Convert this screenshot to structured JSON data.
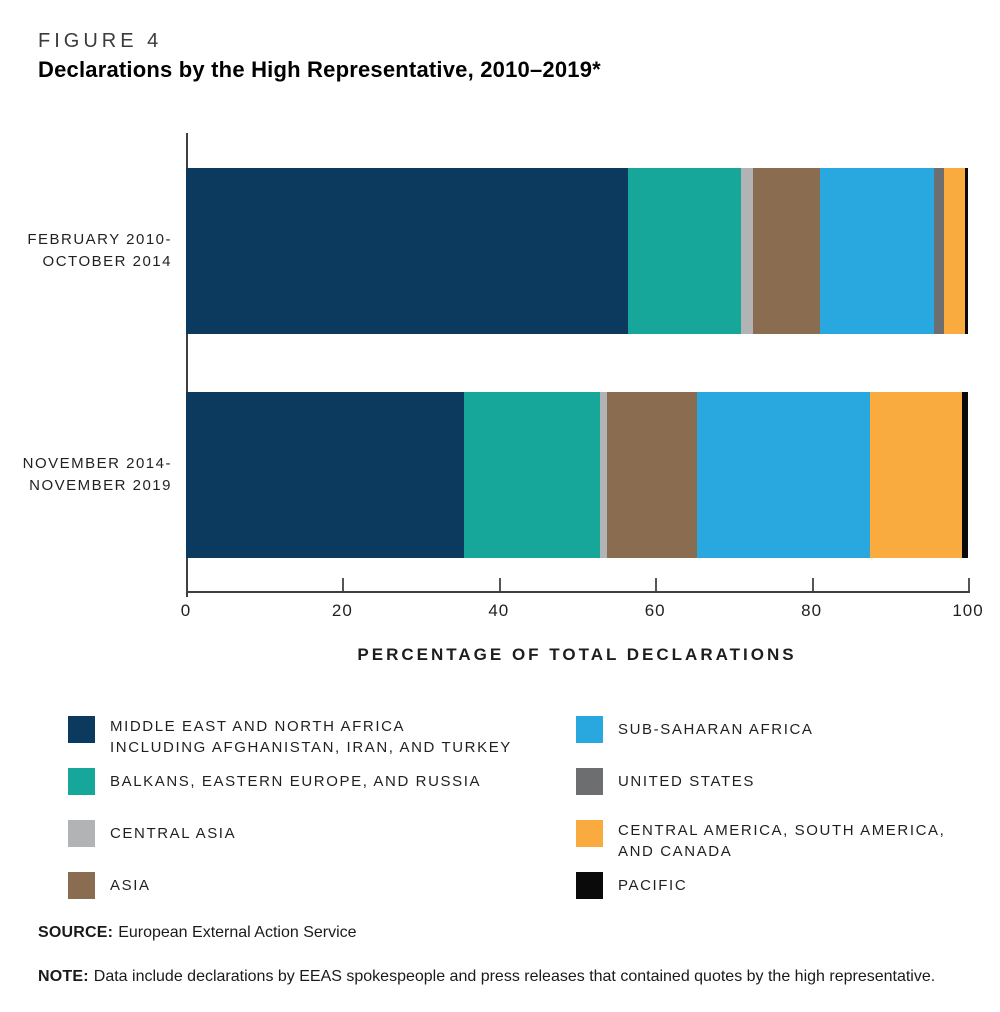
{
  "figure": {
    "label": "FIGURE 4",
    "title": "Declarations by the High Representative, 2010–2019*"
  },
  "chart_data": {
    "type": "bar",
    "orientation": "horizontal",
    "stacked": true,
    "title": "Declarations by the High Representative, 2010–2019*",
    "xlabel": "PERCENTAGE OF TOTAL DECLARATIONS",
    "ylabel": "",
    "xlim": [
      0,
      100
    ],
    "xticks": [
      0,
      20,
      40,
      60,
      80,
      100
    ],
    "grid": false,
    "legend_position": "bottom-two-columns",
    "categories": [
      "FEBRUARY 2010-OCTOBER 2014",
      "NOVEMBER 2014-NOVEMBER 2019"
    ],
    "category_label_lines": [
      [
        "FEBRUARY 2010-",
        "OCTOBER 2014"
      ],
      [
        "NOVEMBER 2014-",
        "NOVEMBER 2019"
      ]
    ],
    "series": [
      {
        "name": "MIDDLE EAST AND NORTH AFRICA INCLUDING AFGHANISTAN, IRAN, AND TURKEY",
        "legend_lines": [
          "MIDDLE EAST AND NORTH AFRICA",
          "INCLUDING AFGHANISTAN, IRAN, AND TURKEY"
        ],
        "color": "#0b3a5e",
        "values": [
          56.5,
          35.5
        ]
      },
      {
        "name": "BALKANS, EASTERN EUROPE, AND RUSSIA",
        "legend_lines": [
          "BALKANS, EASTERN EUROPE, AND RUSSIA"
        ],
        "color": "#17a69a",
        "values": [
          14.5,
          17.4
        ]
      },
      {
        "name": "CENTRAL ASIA",
        "legend_lines": [
          "CENTRAL ASIA"
        ],
        "color": "#b2b3b4",
        "values": [
          1.5,
          1.0
        ]
      },
      {
        "name": "ASIA",
        "legend_lines": [
          "ASIA"
        ],
        "color": "#8a6c51",
        "values": [
          8.6,
          11.4
        ]
      },
      {
        "name": "SUB-SAHARAN AFRICA",
        "legend_lines": [
          "SUB-SAHARAN AFRICA"
        ],
        "color": "#29a8e0",
        "values": [
          14.5,
          22.2
        ]
      },
      {
        "name": "UNITED STATES",
        "legend_lines": [
          "UNITED STATES"
        ],
        "color": "#6d6e70",
        "values": [
          1.4,
          0
        ]
      },
      {
        "name": "CENTRAL AMERICA, SOUTH AMERICA, AND CANADA",
        "legend_lines": [
          "CENTRAL AMERICA, SOUTH AMERICA,",
          "AND CANADA"
        ],
        "color": "#f9ab40",
        "values": [
          2.6,
          11.8
        ]
      },
      {
        "name": "PACIFIC",
        "legend_lines": [
          "PACIFIC"
        ],
        "color": "#0a0a0a",
        "values": [
          0.4,
          0.7
        ]
      }
    ]
  },
  "legend": {
    "columns": [
      [
        0,
        1,
        2,
        3
      ],
      [
        4,
        5,
        6,
        7
      ]
    ]
  },
  "source": {
    "label": "SOURCE:",
    "text": "European External Action Service"
  },
  "note": {
    "label": "NOTE:",
    "text": "Data include declarations by EEAS spokespeople and press releases that contained quotes by the high representative."
  }
}
